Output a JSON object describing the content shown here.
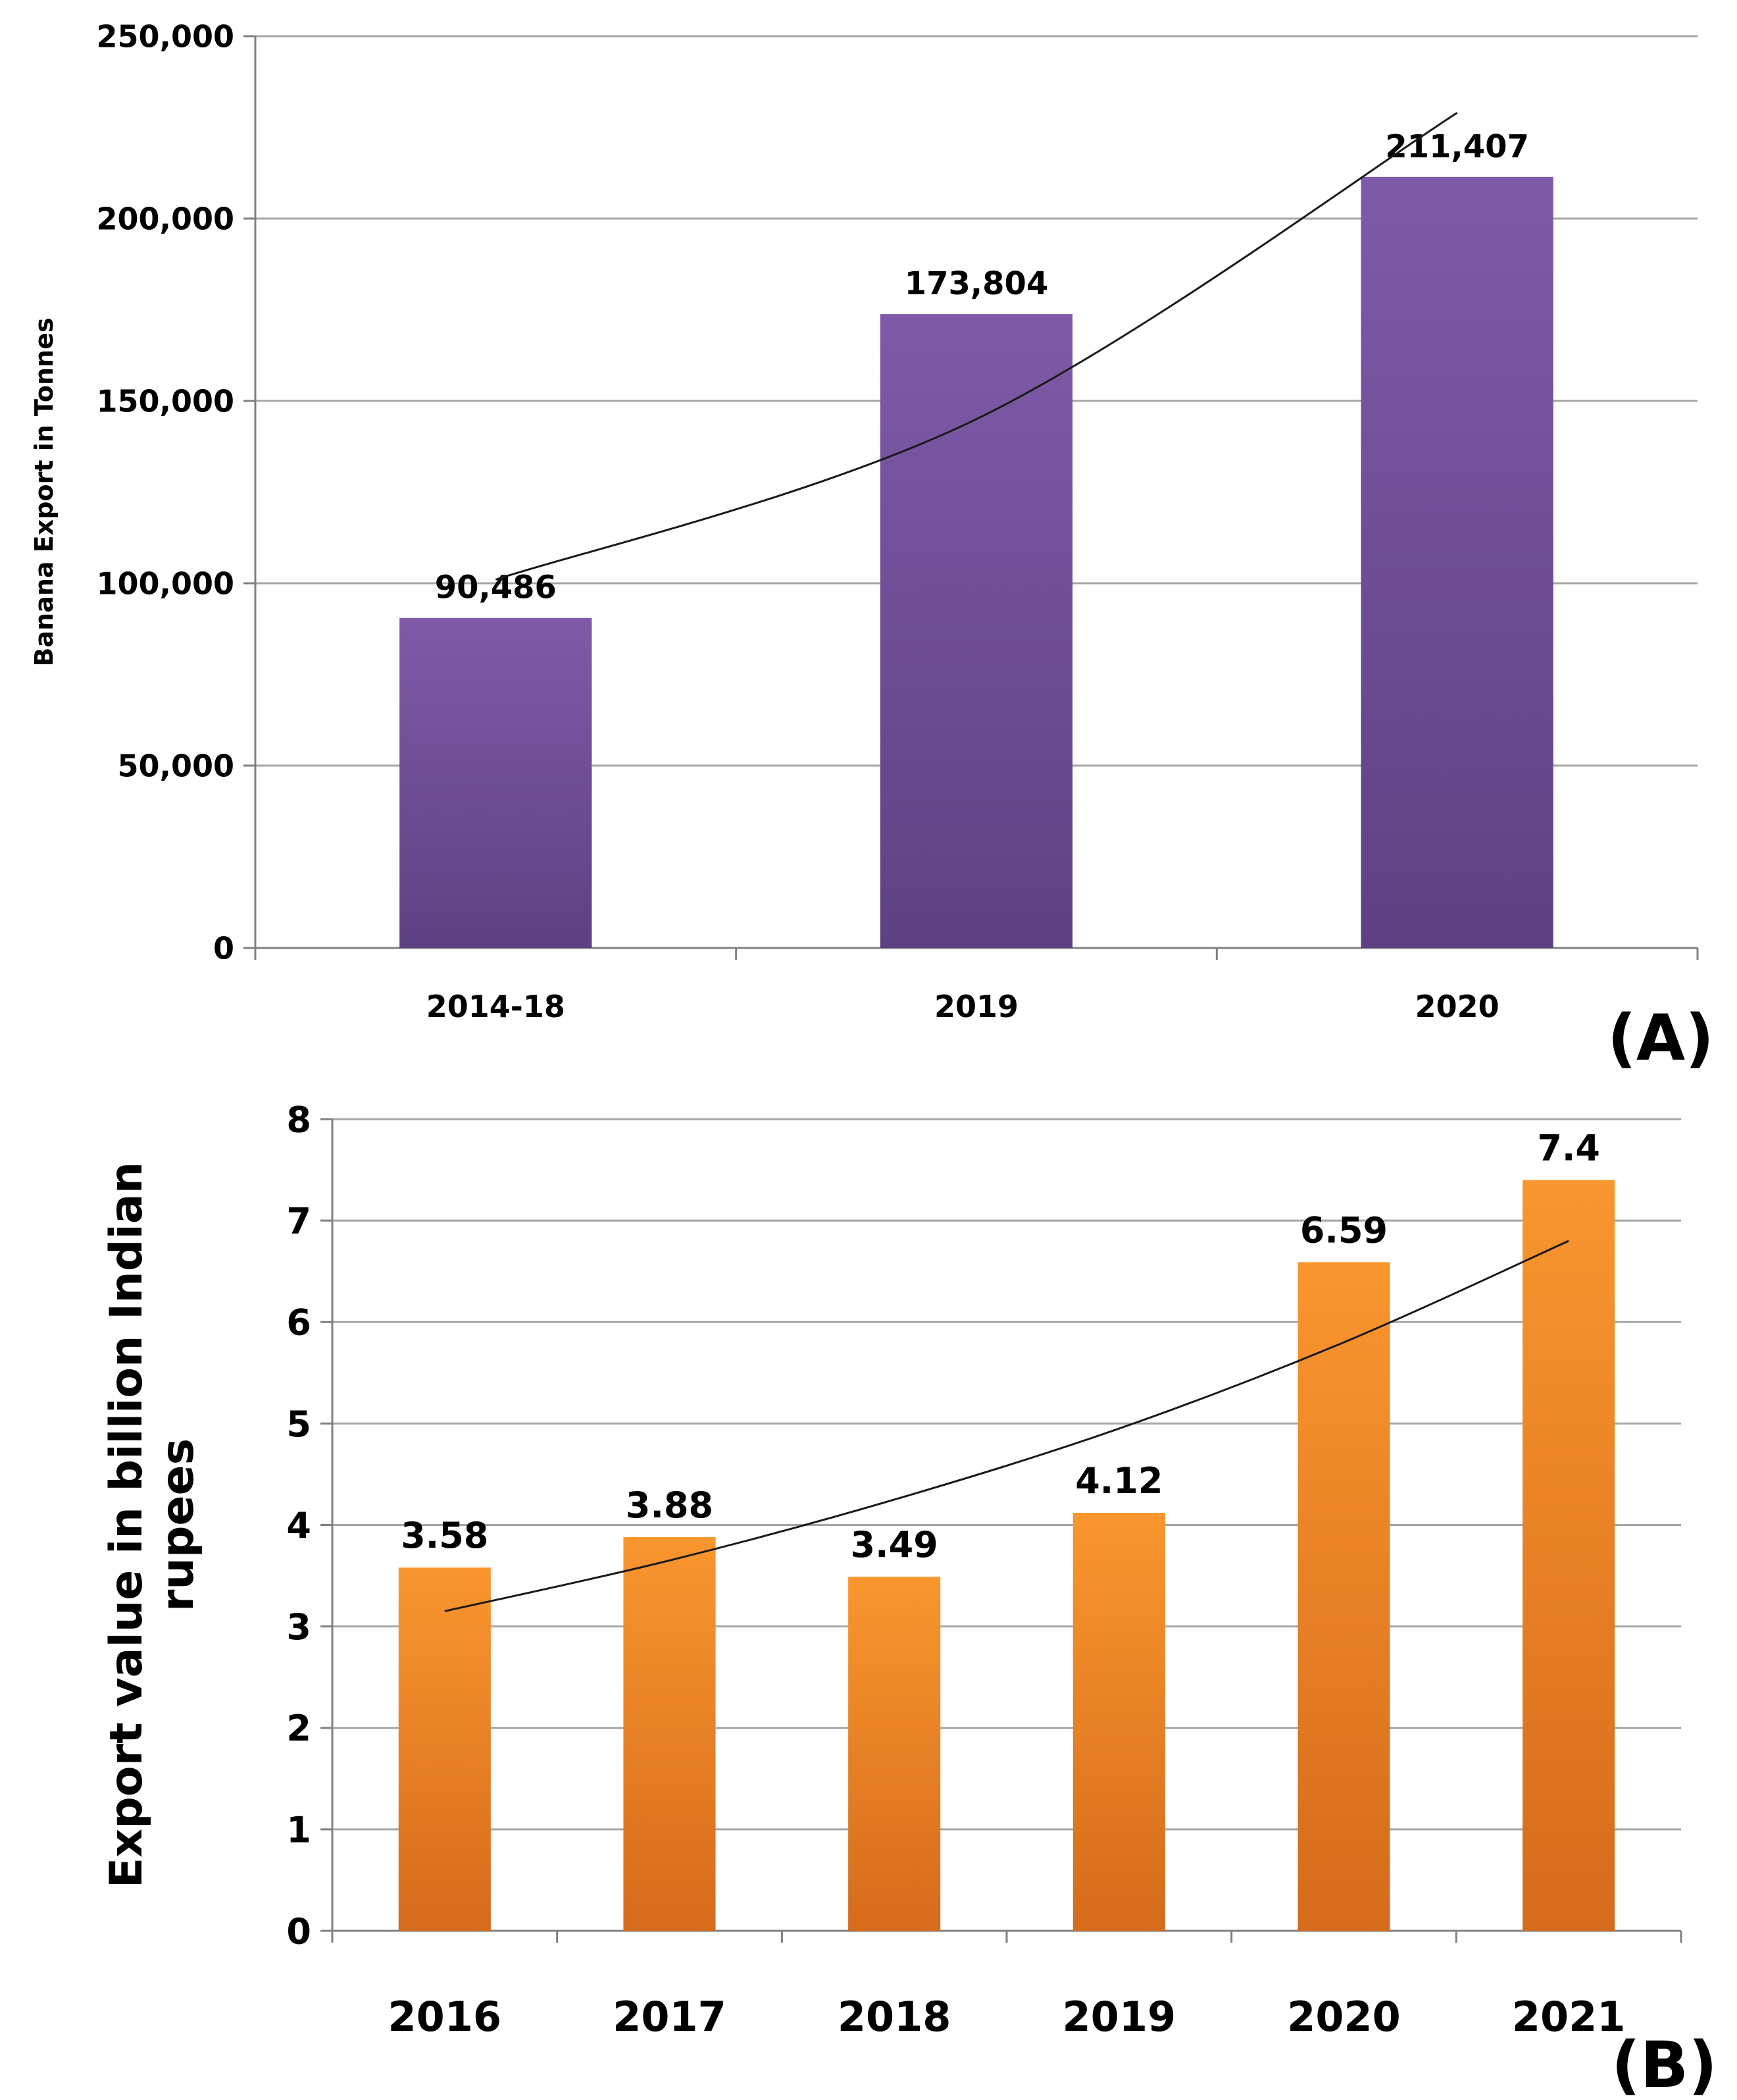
{
  "chart_data": [
    {
      "panel": "(A)",
      "type": "bar",
      "categories": [
        "2014-18",
        "2019",
        "2020"
      ],
      "values": [
        90486,
        173804,
        211407
      ],
      "data_labels": [
        "90,486",
        "173,804",
        "211,407"
      ],
      "ylabel": "Banana Export in Tonnes",
      "xlabel": "",
      "ylim": [
        0,
        250000
      ],
      "yticks": [
        0,
        50000,
        100000,
        150000,
        200000,
        250000
      ],
      "ytick_labels": [
        "0",
        "50,000",
        "100,000",
        "150,000",
        "200,000",
        "250,000"
      ],
      "grid": true,
      "trendline": "exponential",
      "trend_values": [
        101000,
        145000,
        229000
      ],
      "bar_color": "#7a59a6",
      "bar_color_dark": "#5c3f82"
    },
    {
      "panel": "(B)",
      "type": "bar",
      "categories": [
        "2016",
        "2017",
        "2018",
        "2019",
        "2020",
        "2021"
      ],
      "values": [
        3.58,
        3.88,
        3.49,
        4.12,
        6.59,
        7.4
      ],
      "data_labels": [
        "3.58",
        "3.88",
        "3.49",
        "4.12",
        "6.59",
        "7.4"
      ],
      "ylabel": "Export value in billion Indian rupees",
      "ylabel_lines": [
        "Export value in billion Indian",
        "rupees"
      ],
      "xlabel": "",
      "ylim": [
        0,
        8
      ],
      "yticks": [
        0,
        1,
        2,
        3,
        4,
        5,
        6,
        7,
        8
      ],
      "ytick_labels": [
        "0",
        "1",
        "2",
        "3",
        "4",
        "5",
        "6",
        "7",
        "8"
      ],
      "grid": true,
      "trendline": "exponential",
      "trend_values": [
        3.15,
        3.65,
        4.25,
        4.95,
        5.8,
        6.8
      ],
      "bar_color": "#f7922e",
      "bar_color_dark": "#d46a1a"
    }
  ]
}
